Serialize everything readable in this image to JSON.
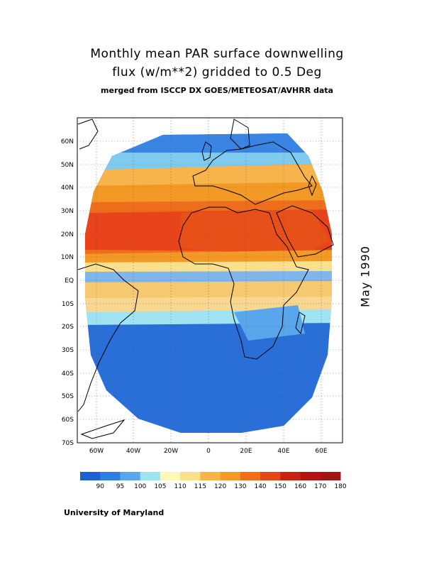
{
  "title": {
    "line1": "Monthly mean PAR surface downwelling",
    "line2": "flux (w/m**2) gridded to 0.5 Deg",
    "line3": "merged from ISCCP DX GOES/METEOSAT/AVHRR data"
  },
  "date_label": "May 1990",
  "credit": "University of Maryland",
  "map": {
    "lon_range": [
      -70,
      70
    ],
    "lat_range": [
      -70,
      70
    ],
    "lat_ticks": [
      "60N",
      "50N",
      "40N",
      "30N",
      "20N",
      "10N",
      "EQ",
      "10S",
      "20S",
      "30S",
      "40S",
      "50S",
      "60S",
      "70S"
    ],
    "lat_values": [
      60,
      50,
      40,
      30,
      20,
      10,
      0,
      -10,
      -20,
      -30,
      -40,
      -50,
      -60,
      -70
    ],
    "lon_ticks": [
      "60W",
      "40W",
      "20W",
      "0",
      "20E",
      "40E",
      "60E"
    ],
    "lon_values": [
      -60,
      -40,
      -20,
      0,
      20,
      40,
      60
    ],
    "grid": "dotted"
  },
  "colorbar": {
    "colors": [
      "#1f5fcf",
      "#2f7fe0",
      "#5aa6ec",
      "#9fe3f2",
      "#fff8bc",
      "#f8e08c",
      "#f6b44a",
      "#f39a26",
      "#ef6e1c",
      "#e8431a",
      "#cf1e14",
      "#b81111",
      "#a01414"
    ],
    "labels": [
      "90",
      "95",
      "100",
      "105",
      "110",
      "115",
      "120",
      "130",
      "140",
      "150",
      "160",
      "170",
      "180"
    ]
  }
}
